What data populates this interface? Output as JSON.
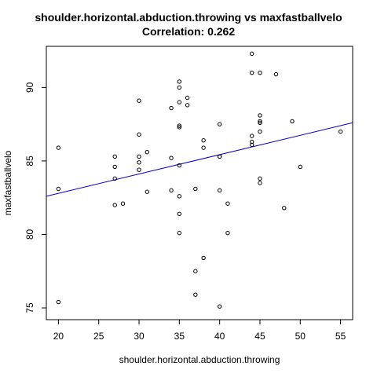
{
  "chart_data": {
    "type": "scatter",
    "title": "shoulder.horizontal.abduction.throwing vs maxfastballvelo",
    "subtitle": "Correlation: 0.262",
    "xlabel": "shoulder.horizontal.abduction.throwing",
    "ylabel": "maxfastballvelo",
    "xlim": [
      18.5,
      56.5
    ],
    "ylim": [
      74.2,
      92.8
    ],
    "xticks": [
      20,
      25,
      30,
      35,
      40,
      45,
      50,
      55
    ],
    "yticks": [
      75,
      80,
      85,
      90
    ],
    "grid": false,
    "regression_line": {
      "color": "#0000cc",
      "y_at_xmin": 82.6,
      "y_at_xmax": 87.6
    },
    "points": [
      [
        20,
        85.9
      ],
      [
        20,
        83.1
      ],
      [
        20,
        75.4
      ],
      [
        27,
        85.3
      ],
      [
        27,
        84.6
      ],
      [
        27,
        83.8
      ],
      [
        27,
        82.0
      ],
      [
        28,
        82.1
      ],
      [
        30,
        89.1
      ],
      [
        30,
        86.8
      ],
      [
        30,
        85.3
      ],
      [
        30,
        84.9
      ],
      [
        30,
        84.4
      ],
      [
        31,
        85.6
      ],
      [
        31,
        82.9
      ],
      [
        34,
        88.6
      ],
      [
        34,
        85.2
      ],
      [
        34,
        83.0
      ],
      [
        35,
        90.4
      ],
      [
        35,
        90.0
      ],
      [
        35,
        89.0
      ],
      [
        35,
        87.4
      ],
      [
        35,
        87.3
      ],
      [
        35,
        84.7
      ],
      [
        35,
        82.6
      ],
      [
        35,
        81.4
      ],
      [
        35,
        80.1
      ],
      [
        36,
        89.3
      ],
      [
        36,
        88.8
      ],
      [
        37,
        83.1
      ],
      [
        37,
        77.5
      ],
      [
        37,
        75.9
      ],
      [
        38,
        86.4
      ],
      [
        38,
        85.9
      ],
      [
        38,
        78.4
      ],
      [
        40,
        87.5
      ],
      [
        40,
        85.3
      ],
      [
        40,
        85.3
      ],
      [
        40,
        83.0
      ],
      [
        40,
        75.1
      ],
      [
        41,
        82.1
      ],
      [
        41,
        80.1
      ],
      [
        44,
        92.3
      ],
      [
        44,
        91.0
      ],
      [
        44,
        86.7
      ],
      [
        44,
        86.3
      ],
      [
        44,
        86.1
      ],
      [
        45,
        91.0
      ],
      [
        45,
        88.1
      ],
      [
        45,
        87.7
      ],
      [
        45,
        87.6
      ],
      [
        45,
        87.0
      ],
      [
        45,
        83.8
      ],
      [
        45,
        83.5
      ],
      [
        47,
        90.9
      ],
      [
        48,
        81.8
      ],
      [
        49,
        87.7
      ],
      [
        50,
        84.6
      ],
      [
        55,
        87.0
      ]
    ]
  }
}
